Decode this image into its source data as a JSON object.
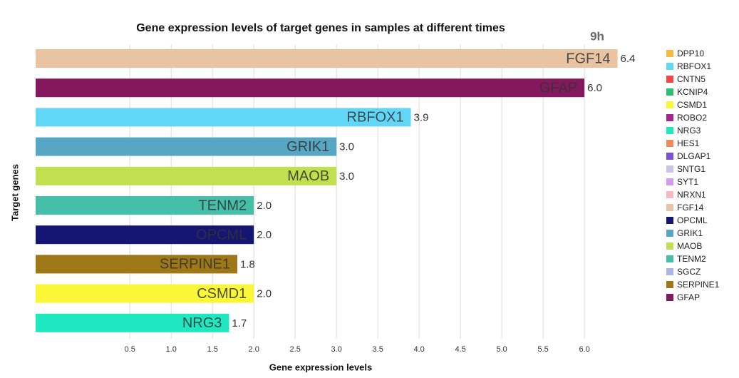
{
  "chart_data": {
    "type": "bar",
    "orientation": "horizontal",
    "title": "Gene expression levels of target genes in samples at different times",
    "annotation": "9h",
    "xlabel": "Gene expression levels",
    "ylabel": "Target genes",
    "categories": [
      "FGF14",
      "GFAP",
      "RBFOX1",
      "GRIK1",
      "MAOB",
      "TENM2",
      "OPCML",
      "SERPINE1",
      "CSMD1",
      "NRG3"
    ],
    "values": [
      6.4,
      6.0,
      3.9,
      3.0,
      3.0,
      2.0,
      2.0,
      1.8,
      2.0,
      1.7
    ],
    "value_labels": [
      "6.4",
      "6.0",
      "3.9",
      "3.0",
      "3.0",
      "2.0",
      "2.0",
      "1.8",
      "2.0",
      "1.7"
    ],
    "xlim": [
      -0.64,
      6.43
    ],
    "xticks": [
      0.5,
      {
        "value": 1,
        "label": "1.0"
      },
      1.5,
      {
        "value": 2,
        "label": "2.0"
      },
      2.5,
      {
        "value": 3,
        "label": "3.0"
      },
      3.5,
      {
        "value": 4,
        "label": "4.0"
      },
      4.5,
      {
        "value": 5,
        "label": "5.0"
      },
      5.5,
      {
        "value": 6,
        "label": "6.0"
      }
    ],
    "grid": true,
    "legend_position": "right",
    "legend": [
      {
        "name": "DPP10",
        "color": "#f5b942"
      },
      {
        "name": "RBFOX1",
        "color": "#62d6f7"
      },
      {
        "name": "CNTN5",
        "color": "#f04848"
      },
      {
        "name": "KCNIP4",
        "color": "#2bbf73"
      },
      {
        "name": "CSMD1",
        "color": "#fbf637"
      },
      {
        "name": "ROBO2",
        "color": "#a5268e"
      },
      {
        "name": "NRG3",
        "color": "#1de8c0"
      },
      {
        "name": "HES1",
        "color": "#f08a5d"
      },
      {
        "name": "DLGAP1",
        "color": "#7b4fd6"
      },
      {
        "name": "SNTG1",
        "color": "#c8c6e6"
      },
      {
        "name": "SYT1",
        "color": "#d59af0"
      },
      {
        "name": "NRXN1",
        "color": "#f7b8c4"
      },
      {
        "name": "FGF14",
        "color": "#e8c4a2"
      },
      {
        "name": "OPCML",
        "color": "#151673"
      },
      {
        "name": "GRIK1",
        "color": "#57a6c4"
      },
      {
        "name": "MAOB",
        "color": "#c0e04f"
      },
      {
        "name": "TENM2",
        "color": "#46bfa8"
      },
      {
        "name": "SGCZ",
        "color": "#a9b5e6"
      },
      {
        "name": "SERPINE1",
        "color": "#9e7717"
      },
      {
        "name": "GFAP",
        "color": "#84185f"
      }
    ]
  }
}
